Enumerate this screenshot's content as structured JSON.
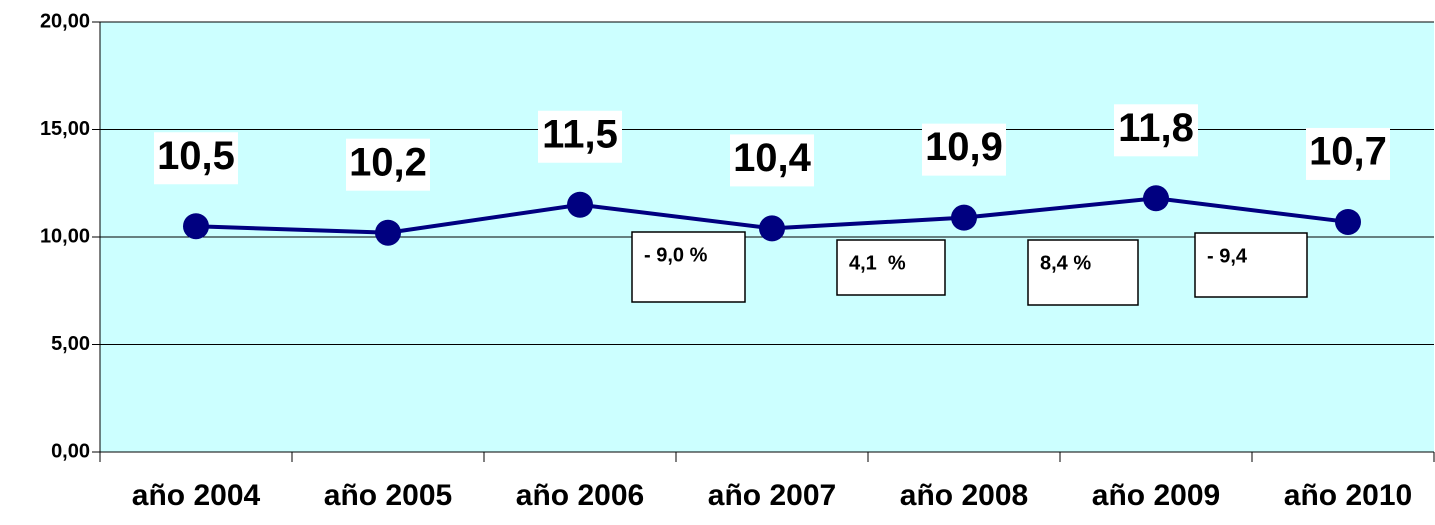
{
  "chart_data": {
    "type": "line",
    "categories": [
      "año 2004",
      "año 2005",
      "año 2006",
      "año 2007",
      "año 2008",
      "año 2009",
      "año 2010"
    ],
    "series": [
      {
        "color": "#000080",
        "values": [
          10.5,
          10.2,
          11.5,
          10.4,
          10.9,
          11.8,
          10.7
        ],
        "value_labels": [
          "10,5",
          "10,2",
          "11,5",
          "10,4",
          "10,9",
          "11,8",
          "10,7"
        ]
      }
    ],
    "ylim": [
      0,
      20
    ],
    "yticks": [
      {
        "value": 0,
        "label": "0,00"
      },
      {
        "value": 5,
        "label": "5,00"
      },
      {
        "value": 10,
        "label": "10,00"
      },
      {
        "value": 15,
        "label": "15,00"
      },
      {
        "value": 20,
        "label": "20,00"
      }
    ],
    "grid": true,
    "background": "#ccffff",
    "annotations": [
      "- 9,0 %",
      "4,1  %",
      "8,4 %",
      "- 9,4"
    ]
  }
}
